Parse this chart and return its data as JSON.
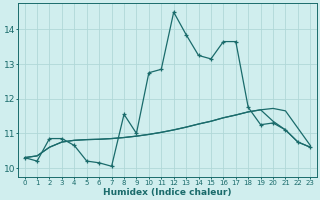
{
  "xlabel": "Humidex (Indice chaleur)",
  "background_color": "#d0eeee",
  "grid_color": "#b0d8d8",
  "line_color": "#1a6b6b",
  "xlim": [
    -0.5,
    23.5
  ],
  "ylim": [
    9.75,
    14.75
  ],
  "xticks": [
    0,
    1,
    2,
    3,
    4,
    5,
    6,
    7,
    8,
    9,
    10,
    11,
    12,
    13,
    14,
    15,
    16,
    17,
    18,
    19,
    20,
    21,
    22,
    23
  ],
  "yticks": [
    10,
    11,
    12,
    13,
    14
  ],
  "line1_x": [
    0,
    1,
    2,
    3,
    4,
    5,
    6,
    7,
    8,
    9,
    10,
    11,
    12,
    13,
    14,
    15,
    16,
    17,
    18,
    19,
    20,
    21,
    22,
    23
  ],
  "line1_y": [
    10.3,
    10.2,
    10.85,
    10.85,
    10.65,
    10.2,
    10.15,
    10.05,
    11.55,
    11.0,
    12.75,
    12.85,
    14.5,
    13.85,
    13.25,
    13.15,
    13.65,
    13.65,
    11.75,
    11.25,
    11.3,
    11.1,
    10.75,
    10.6
  ],
  "line2_x": [
    0,
    1,
    2,
    3,
    4,
    5,
    6,
    7,
    8,
    9,
    10,
    11,
    12,
    13,
    14,
    15,
    16,
    17,
    18,
    19,
    20,
    21,
    22,
    23
  ],
  "line2_y": [
    10.3,
    10.35,
    10.6,
    10.75,
    10.8,
    10.82,
    10.83,
    10.85,
    10.88,
    10.92,
    10.97,
    11.03,
    11.1,
    11.18,
    11.27,
    11.35,
    11.45,
    11.53,
    11.62,
    11.68,
    11.72,
    11.65,
    11.15,
    10.65
  ],
  "line3_x": [
    0,
    1,
    2,
    3,
    4,
    5,
    6,
    7,
    8,
    9,
    10,
    11,
    12,
    13,
    14,
    15,
    16,
    17,
    18,
    19,
    20,
    21,
    22,
    23
  ],
  "line3_y": [
    10.3,
    10.35,
    10.6,
    10.75,
    10.8,
    10.82,
    10.83,
    10.85,
    10.88,
    10.92,
    10.97,
    11.03,
    11.1,
    11.18,
    11.27,
    11.35,
    11.45,
    11.53,
    11.62,
    11.68,
    11.35,
    11.1,
    10.75,
    10.6
  ],
  "xtick_fontsize": 5.0,
  "ytick_fontsize": 6.5,
  "xlabel_fontsize": 6.5
}
